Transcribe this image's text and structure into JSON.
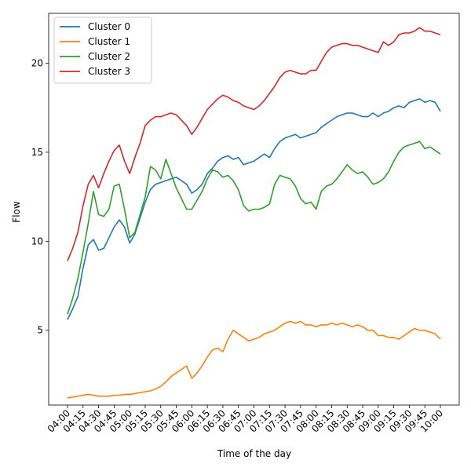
{
  "chart_data": {
    "type": "line",
    "xlabel": "Time of the day",
    "ylabel": "Flow",
    "title": "",
    "x_ticks": [
      "04:00",
      "04:15",
      "04:30",
      "04:45",
      "05:00",
      "05:15",
      "05:30",
      "05:45",
      "06:00",
      "06:15",
      "06:30",
      "06:45",
      "07:00",
      "07:15",
      "07:30",
      "07:45",
      "08:00",
      "08:15",
      "08:30",
      "08:45",
      "09:00",
      "09:15",
      "09:30",
      "09:45",
      "10:00"
    ],
    "yticks": [
      5,
      10,
      15,
      20
    ],
    "ylim": [
      0.8,
      22.8
    ],
    "grid": false,
    "legend": "upper-left",
    "series": [
      {
        "name": "Cluster 0",
        "color": "#1f77b4",
        "x": [
          "04:00",
          "04:05",
          "04:10",
          "04:15",
          "04:20",
          "04:25",
          "04:30",
          "04:35",
          "04:40",
          "04:45",
          "04:50",
          "04:55",
          "05:00",
          "05:05",
          "05:10",
          "05:15",
          "05:20",
          "05:25",
          "05:30",
          "05:35",
          "05:40",
          "05:45",
          "05:50",
          "05:55",
          "06:00",
          "06:05",
          "06:10",
          "06:15",
          "06:20",
          "06:25",
          "06:30",
          "06:35",
          "06:40",
          "06:45",
          "06:50",
          "06:55",
          "07:00",
          "07:05",
          "07:10",
          "07:15",
          "07:20",
          "07:25",
          "07:30",
          "07:35",
          "07:40",
          "07:45",
          "07:50",
          "07:55",
          "08:00",
          "08:05",
          "08:10",
          "08:15",
          "08:20",
          "08:25",
          "08:30",
          "08:35",
          "08:40",
          "08:45",
          "08:50",
          "08:55",
          "09:00",
          "09:05",
          "09:10",
          "09:15",
          "09:20",
          "09:25",
          "09:30",
          "09:35",
          "09:40",
          "09:45",
          "09:50",
          "09:55",
          "10:00"
        ],
        "y": [
          5.6,
          6.2,
          6.9,
          8.5,
          9.8,
          10.1,
          9.5,
          9.6,
          10.2,
          10.8,
          11.2,
          10.8,
          9.9,
          10.4,
          11.3,
          12.2,
          12.9,
          13.2,
          13.3,
          13.4,
          13.5,
          13.6,
          13.4,
          13.2,
          12.7,
          12.9,
          13.2,
          13.8,
          14.1,
          14.5,
          14.7,
          14.8,
          14.6,
          14.7,
          14.3,
          14.4,
          14.5,
          14.7,
          14.9,
          14.7,
          15.2,
          15.6,
          15.8,
          15.9,
          16.0,
          15.8,
          15.9,
          16.0,
          16.1,
          16.4,
          16.6,
          16.8,
          17.0,
          17.1,
          17.2,
          17.2,
          17.1,
          17.0,
          17.0,
          17.2,
          17.0,
          17.2,
          17.3,
          17.5,
          17.6,
          17.5,
          17.8,
          17.9,
          18.0,
          17.8,
          17.9,
          17.8,
          17.3
        ]
      },
      {
        "name": "Cluster 1",
        "color": "#ff7f0e",
        "x": [
          "04:00",
          "04:05",
          "04:10",
          "04:15",
          "04:20",
          "04:25",
          "04:30",
          "04:35",
          "04:40",
          "04:45",
          "04:50",
          "04:55",
          "05:00",
          "05:05",
          "05:10",
          "05:15",
          "05:20",
          "05:25",
          "05:30",
          "05:35",
          "05:40",
          "05:45",
          "05:50",
          "05:55",
          "06:00",
          "06:05",
          "06:10",
          "06:15",
          "06:20",
          "06:25",
          "06:30",
          "06:35",
          "06:40",
          "06:45",
          "06:50",
          "06:55",
          "07:00",
          "07:05",
          "07:10",
          "07:15",
          "07:20",
          "07:25",
          "07:30",
          "07:35",
          "07:40",
          "07:45",
          "07:50",
          "07:55",
          "08:00",
          "08:05",
          "08:10",
          "08:15",
          "08:20",
          "08:25",
          "08:30",
          "08:35",
          "08:40",
          "08:45",
          "08:50",
          "08:55",
          "09:00",
          "09:05",
          "09:10",
          "09:15",
          "09:20",
          "09:25",
          "09:30",
          "09:35",
          "09:40",
          "09:45",
          "09:50",
          "09:55",
          "10:00"
        ],
        "y": [
          1.2,
          1.25,
          1.3,
          1.35,
          1.4,
          1.35,
          1.3,
          1.3,
          1.3,
          1.35,
          1.35,
          1.4,
          1.4,
          1.45,
          1.5,
          1.55,
          1.6,
          1.7,
          1.85,
          2.1,
          2.4,
          2.6,
          2.8,
          3.0,
          2.3,
          2.6,
          3.0,
          3.5,
          3.9,
          4.0,
          3.8,
          4.5,
          5.0,
          4.8,
          4.6,
          4.4,
          4.5,
          4.6,
          4.8,
          4.9,
          5.0,
          5.2,
          5.4,
          5.5,
          5.4,
          5.5,
          5.3,
          5.3,
          5.2,
          5.3,
          5.3,
          5.4,
          5.3,
          5.4,
          5.3,
          5.2,
          5.3,
          5.2,
          5.0,
          5.0,
          4.7,
          4.7,
          4.6,
          4.6,
          4.5,
          4.7,
          4.9,
          5.1,
          5.0,
          5.0,
          4.9,
          4.8,
          4.5
        ]
      },
      {
        "name": "Cluster 2",
        "color": "#2ca02c",
        "x": [
          "04:00",
          "04:05",
          "04:10",
          "04:15",
          "04:20",
          "04:25",
          "04:30",
          "04:35",
          "04:40",
          "04:45",
          "04:50",
          "04:55",
          "05:00",
          "05:05",
          "05:10",
          "05:15",
          "05:20",
          "05:25",
          "05:30",
          "05:35",
          "05:40",
          "05:45",
          "05:50",
          "05:55",
          "06:00",
          "06:05",
          "06:10",
          "06:15",
          "06:20",
          "06:25",
          "06:30",
          "06:35",
          "06:40",
          "06:45",
          "06:50",
          "06:55",
          "07:00",
          "07:05",
          "07:10",
          "07:15",
          "07:20",
          "07:25",
          "07:30",
          "07:35",
          "07:40",
          "07:45",
          "07:50",
          "07:55",
          "08:00",
          "08:05",
          "08:10",
          "08:15",
          "08:20",
          "08:25",
          "08:30",
          "08:35",
          "08:40",
          "08:45",
          "08:50",
          "08:55",
          "09:00",
          "09:05",
          "09:10",
          "09:15",
          "09:20",
          "09:25",
          "09:30",
          "09:35",
          "09:40",
          "09:45",
          "09:50",
          "09:55",
          "10:00"
        ],
        "y": [
          5.9,
          6.8,
          7.9,
          9.4,
          11.0,
          12.8,
          11.5,
          11.4,
          11.8,
          13.1,
          13.2,
          11.8,
          10.2,
          10.5,
          11.5,
          12.5,
          14.2,
          14.0,
          13.5,
          14.6,
          13.8,
          13.0,
          12.4,
          11.8,
          11.8,
          12.3,
          12.8,
          13.5,
          14.0,
          13.9,
          13.6,
          13.7,
          13.4,
          12.9,
          12.0,
          11.7,
          11.8,
          11.8,
          11.9,
          12.1,
          13.2,
          13.7,
          13.6,
          13.5,
          13.1,
          12.4,
          12.1,
          12.2,
          11.8,
          12.8,
          13.1,
          13.2,
          13.5,
          13.9,
          14.3,
          14.0,
          13.8,
          13.9,
          13.6,
          13.2,
          13.3,
          13.5,
          13.9,
          14.5,
          15.0,
          15.3,
          15.4,
          15.5,
          15.6,
          15.2,
          15.3,
          15.1,
          14.9
        ]
      },
      {
        "name": "Cluster 3",
        "color": "#d62728",
        "x": [
          "04:00",
          "04:05",
          "04:10",
          "04:15",
          "04:20",
          "04:25",
          "04:30",
          "04:35",
          "04:40",
          "04:45",
          "04:50",
          "04:55",
          "05:00",
          "05:05",
          "05:10",
          "05:15",
          "05:20",
          "05:25",
          "05:30",
          "05:35",
          "05:40",
          "05:45",
          "05:50",
          "05:55",
          "06:00",
          "06:05",
          "06:10",
          "06:15",
          "06:20",
          "06:25",
          "06:30",
          "06:35",
          "06:40",
          "06:45",
          "06:50",
          "06:55",
          "07:00",
          "07:05",
          "07:10",
          "07:15",
          "07:20",
          "07:25",
          "07:30",
          "07:35",
          "07:40",
          "07:45",
          "07:50",
          "07:55",
          "08:00",
          "08:05",
          "08:10",
          "08:15",
          "08:20",
          "08:25",
          "08:30",
          "08:35",
          "08:40",
          "08:45",
          "08:50",
          "08:55",
          "09:00",
          "09:05",
          "09:10",
          "09:15",
          "09:20",
          "09:25",
          "09:30",
          "09:35",
          "09:40",
          "09:45",
          "09:50",
          "09:55",
          "10:00"
        ],
        "y": [
          8.9,
          9.6,
          10.5,
          12.0,
          13.2,
          13.7,
          13.0,
          13.8,
          14.5,
          15.1,
          15.4,
          14.5,
          13.8,
          14.7,
          15.5,
          16.5,
          16.8,
          17.0,
          17.0,
          17.1,
          17.2,
          17.1,
          16.8,
          16.5,
          16.0,
          16.4,
          16.9,
          17.4,
          17.7,
          18.0,
          18.2,
          18.1,
          17.9,
          17.8,
          17.6,
          17.5,
          17.4,
          17.6,
          17.9,
          18.3,
          18.7,
          19.2,
          19.5,
          19.6,
          19.5,
          19.4,
          19.4,
          19.6,
          19.6,
          20.1,
          20.6,
          20.9,
          21.0,
          21.1,
          21.1,
          21.0,
          21.0,
          20.9,
          20.8,
          20.7,
          20.6,
          21.2,
          21.0,
          21.2,
          21.6,
          21.7,
          21.7,
          21.8,
          22.0,
          21.8,
          21.8,
          21.7,
          21.6
        ]
      }
    ]
  }
}
